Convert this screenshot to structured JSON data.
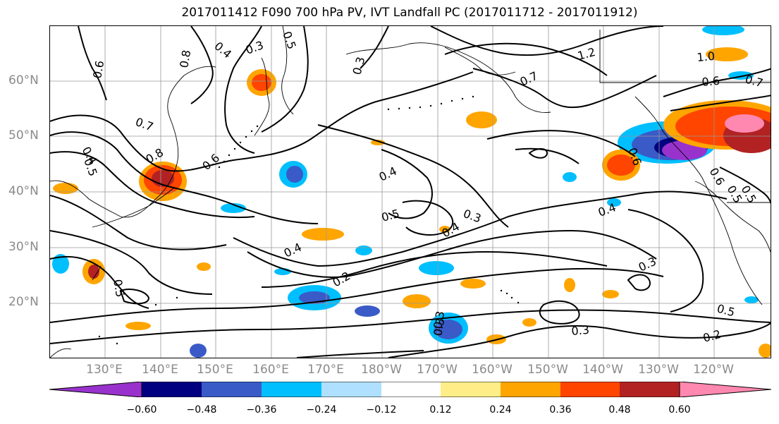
{
  "title": "2017011412 F090 700 hPa PV, IVT Landfall PC (2017011712 - 2017011912)",
  "lat_labels": [
    "60°N",
    "50°N",
    "40°N",
    "30°N",
    "20°N"
  ],
  "lon_labels": [
    "130°E",
    "140°E",
    "150°E",
    "160°E",
    "170°E",
    "180°W",
    "170°W",
    "160°W",
    "150°W",
    "140°W",
    "130°W",
    "120°W"
  ],
  "contour_labels": [
    "0.3",
    "0.4",
    "0.5",
    "0.8",
    "0.6",
    "0.7",
    "0.4",
    "0.5",
    "0.8",
    "0.4",
    "0.5",
    "0.3",
    "0.4",
    "0.4",
    "0.2",
    "0.3",
    "0.3",
    "0.3",
    "0.2",
    "0.5",
    "0.4",
    "0.3",
    "0.6",
    "0.7",
    "1.0",
    "1.2",
    "0.7",
    "0.6",
    "0.5",
    "0.6",
    "0.5",
    "0.3",
    "0.5",
    "0.6"
  ],
  "colorbar": {
    "ticks": [
      "−0.60",
      "−0.48",
      "−0.36",
      "−0.24",
      "−0.12",
      "0.12",
      "0.24",
      "0.36",
      "0.48",
      "0.60"
    ],
    "colors": [
      "#9932cc",
      "#000080",
      "#3a5bc7",
      "#00bfff",
      "#b0e0ff",
      "#ffffff",
      "#ffee88",
      "#ffa500",
      "#ff4500",
      "#b22222",
      "#ff88b0"
    ]
  }
}
